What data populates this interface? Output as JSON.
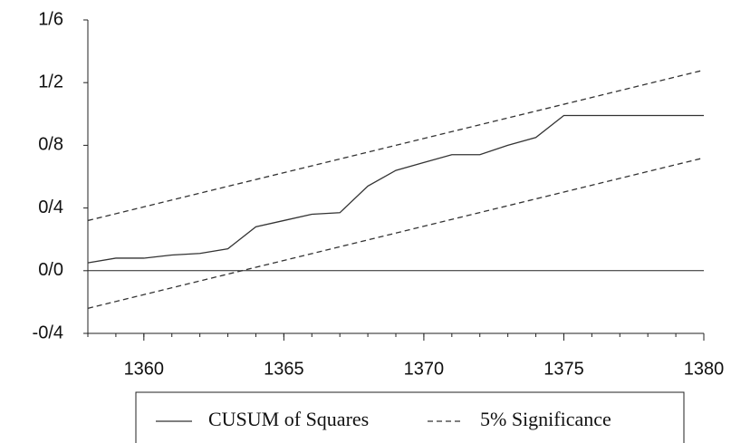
{
  "chart_data": {
    "type": "line",
    "x": [
      1358,
      1359,
      1360,
      1361,
      1362,
      1363,
      1364,
      1365,
      1366,
      1367,
      1368,
      1369,
      1370,
      1371,
      1372,
      1373,
      1374,
      1375,
      1376,
      1377,
      1378,
      1379,
      1380
    ],
    "series": [
      {
        "name": "CUSUM of Squares",
        "color": "#333333",
        "dash": false,
        "values": [
          0.05,
          0.08,
          0.08,
          0.1,
          0.11,
          0.14,
          0.28,
          0.32,
          0.36,
          0.37,
          0.54,
          0.64,
          0.69,
          0.74,
          0.74,
          0.8,
          0.85,
          0.99,
          0.99,
          0.99,
          0.99,
          0.99,
          0.99
        ]
      },
      {
        "name": "5% Significance",
        "color": "#333333",
        "dash": true,
        "x": [
          1358,
          1380
        ],
        "upper": [
          0.32,
          1.28
        ],
        "lower": [
          -0.24,
          0.72
        ]
      }
    ],
    "xlim": [
      1358,
      1380
    ],
    "xticks": [
      1360,
      1365,
      1370,
      1375,
      1380
    ],
    "ylim": [
      -0.4,
      1.6
    ],
    "yticks": [
      {
        "value": -0.4,
        "label": "-0/4"
      },
      {
        "value": 0,
        "label": "0/0"
      },
      {
        "value": 0.4,
        "label": "0/4"
      },
      {
        "value": 0.8,
        "label": "0/8"
      },
      {
        "value": 1.2,
        "label": "1/2"
      },
      {
        "value": 1.6,
        "label": "1/6"
      }
    ],
    "zero_line": true
  }
}
